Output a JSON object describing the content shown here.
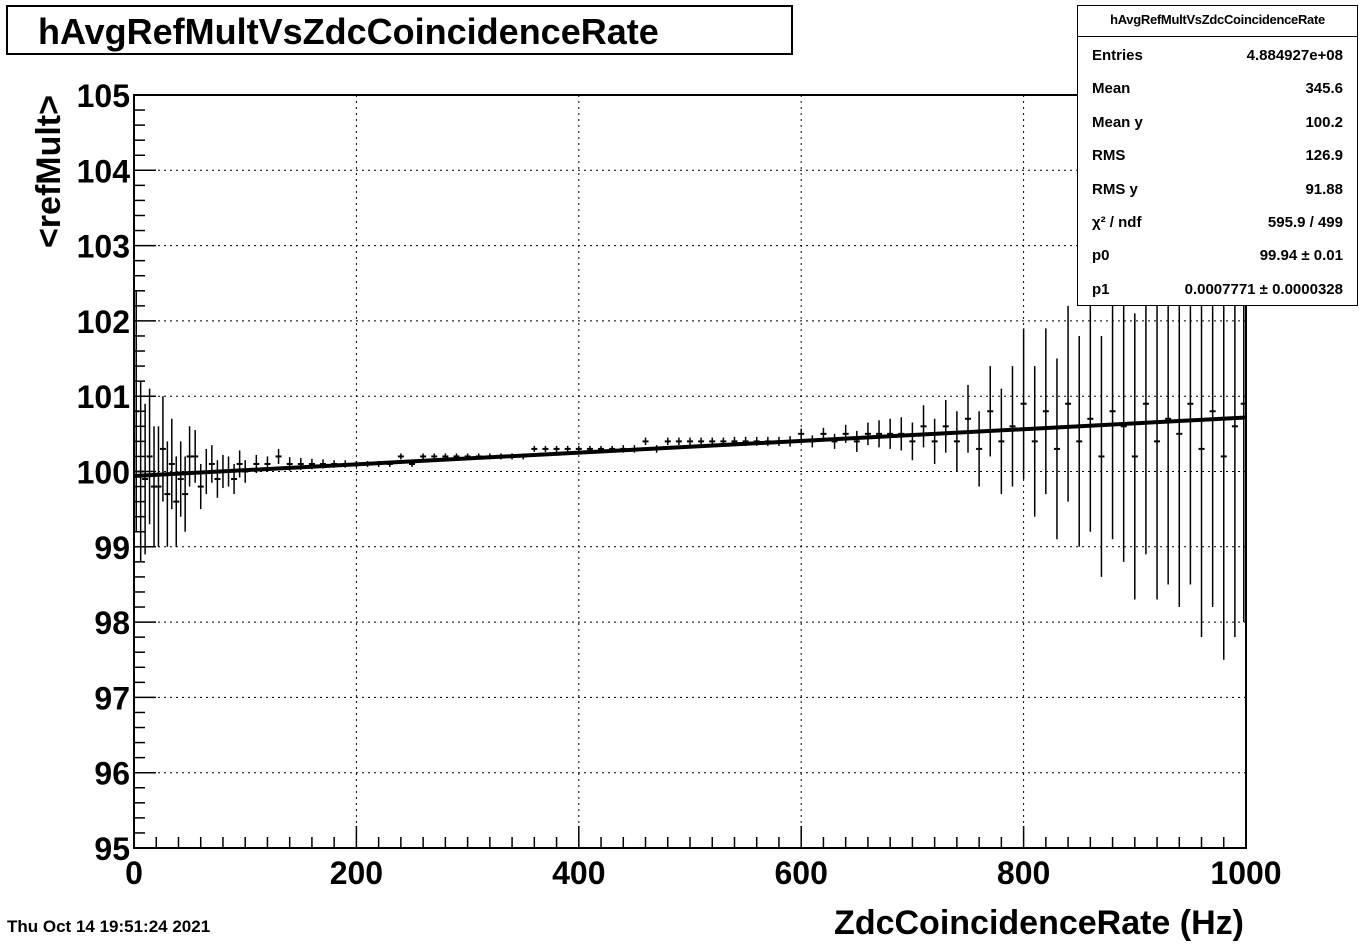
{
  "title": "hAvgRefMultVsZdcCoincidenceRate",
  "date_stamp": "Thu Oct 14 19:51:24 2021",
  "stats": {
    "name": "hAvgRefMultVsZdcCoincidenceRate",
    "rows": [
      {
        "key": "Entries",
        "value": "4.884927e+08"
      },
      {
        "key": "Mean",
        "value": "345.6"
      },
      {
        "key": "Mean y",
        "value": "100.2"
      },
      {
        "key": "RMS",
        "value": "126.9"
      },
      {
        "key": "RMS y",
        "value": "91.88"
      },
      {
        "key": "χ² / ndf",
        "value": "595.9 / 499"
      },
      {
        "key": "p0",
        "value": "99.94 ± 0.01"
      },
      {
        "key": "p1",
        "value": "0.0007771 ± 0.0000328"
      }
    ]
  },
  "chart_data": {
    "type": "scatter",
    "title": "hAvgRefMultVsZdcCoincidenceRate",
    "xlabel": "ZdcCoincidenceRate (Hz)",
    "ylabel": "<refMult>",
    "xlim": [
      0,
      1000
    ],
    "ylim": [
      95,
      105
    ],
    "xticks": [
      0,
      200,
      400,
      600,
      800,
      1000
    ],
    "yticks": [
      95,
      96,
      97,
      98,
      99,
      100,
      101,
      102,
      103,
      104,
      105
    ],
    "grid": true,
    "fit": {
      "type": "linear",
      "p0": 99.94,
      "p1": 0.0007771
    },
    "series": [
      {
        "values": [
          [
            2,
            100.8,
            1.6
          ],
          [
            6,
            100.0,
            1.2
          ],
          [
            10,
            99.9,
            1.0
          ],
          [
            14,
            100.2,
            0.9
          ],
          [
            18,
            99.8,
            0.8
          ],
          [
            22,
            99.8,
            0.8
          ],
          [
            26,
            100.3,
            0.7
          ],
          [
            30,
            99.7,
            0.7
          ],
          [
            34,
            100.1,
            0.6
          ],
          [
            38,
            99.6,
            0.6
          ],
          [
            42,
            99.9,
            0.5
          ],
          [
            46,
            99.7,
            0.5
          ],
          [
            50,
            100.2,
            0.4
          ],
          [
            55,
            100.2,
            0.35
          ],
          [
            60,
            99.8,
            0.3
          ],
          [
            65,
            100.0,
            0.3
          ],
          [
            70,
            100.1,
            0.25
          ],
          [
            75,
            99.9,
            0.25
          ],
          [
            80,
            100.0,
            0.22
          ],
          [
            85,
            100.0,
            0.2
          ],
          [
            90,
            99.9,
            0.2
          ],
          [
            95,
            100.1,
            0.18
          ],
          [
            100,
            100.0,
            0.15
          ],
          [
            110,
            100.1,
            0.12
          ],
          [
            120,
            100.1,
            0.1
          ],
          [
            130,
            100.2,
            0.1
          ],
          [
            140,
            100.1,
            0.09
          ],
          [
            150,
            100.1,
            0.08
          ],
          [
            160,
            100.1,
            0.07
          ],
          [
            170,
            100.1,
            0.06
          ],
          [
            180,
            100.1,
            0.05
          ],
          [
            190,
            100.1,
            0.05
          ],
          [
            200,
            100.1,
            0.04
          ],
          [
            210,
            100.1,
            0.04
          ],
          [
            220,
            100.1,
            0.04
          ],
          [
            230,
            100.1,
            0.04
          ],
          [
            240,
            100.2,
            0.04
          ],
          [
            250,
            100.1,
            0.04
          ],
          [
            260,
            100.2,
            0.04
          ],
          [
            270,
            100.2,
            0.04
          ],
          [
            280,
            100.2,
            0.04
          ],
          [
            290,
            100.2,
            0.04
          ],
          [
            300,
            100.2,
            0.04
          ],
          [
            310,
            100.2,
            0.04
          ],
          [
            320,
            100.2,
            0.04
          ],
          [
            330,
            100.2,
            0.04
          ],
          [
            340,
            100.2,
            0.04
          ],
          [
            350,
            100.2,
            0.04
          ],
          [
            360,
            100.3,
            0.04
          ],
          [
            370,
            100.3,
            0.04
          ],
          [
            380,
            100.3,
            0.04
          ],
          [
            390,
            100.3,
            0.04
          ],
          [
            400,
            100.3,
            0.04
          ],
          [
            410,
            100.3,
            0.04
          ],
          [
            420,
            100.3,
            0.04
          ],
          [
            430,
            100.3,
            0.04
          ],
          [
            440,
            100.3,
            0.05
          ],
          [
            450,
            100.3,
            0.05
          ],
          [
            460,
            100.4,
            0.05
          ],
          [
            470,
            100.3,
            0.05
          ],
          [
            480,
            100.4,
            0.05
          ],
          [
            490,
            100.4,
            0.05
          ],
          [
            500,
            100.4,
            0.05
          ],
          [
            510,
            100.4,
            0.05
          ],
          [
            520,
            100.4,
            0.05
          ],
          [
            530,
            100.4,
            0.05
          ],
          [
            540,
            100.4,
            0.06
          ],
          [
            550,
            100.4,
            0.06
          ],
          [
            560,
            100.4,
            0.06
          ],
          [
            570,
            100.4,
            0.06
          ],
          [
            580,
            100.4,
            0.06
          ],
          [
            590,
            100.4,
            0.07
          ],
          [
            600,
            100.5,
            0.07
          ],
          [
            610,
            100.4,
            0.08
          ],
          [
            620,
            100.5,
            0.08
          ],
          [
            630,
            100.4,
            0.1
          ],
          [
            640,
            100.5,
            0.12
          ],
          [
            650,
            100.4,
            0.14
          ],
          [
            660,
            100.5,
            0.15
          ],
          [
            670,
            100.5,
            0.18
          ],
          [
            680,
            100.5,
            0.2
          ],
          [
            690,
            100.5,
            0.22
          ],
          [
            700,
            100.4,
            0.25
          ],
          [
            710,
            100.6,
            0.28
          ],
          [
            720,
            100.4,
            0.3
          ],
          [
            730,
            100.6,
            0.35
          ],
          [
            740,
            100.4,
            0.4
          ],
          [
            750,
            100.7,
            0.45
          ],
          [
            760,
            100.3,
            0.5
          ],
          [
            770,
            100.8,
            0.6
          ],
          [
            780,
            100.4,
            0.7
          ],
          [
            790,
            100.6,
            0.8
          ],
          [
            800,
            100.9,
            1.0
          ],
          [
            810,
            100.4,
            1.0
          ],
          [
            820,
            100.8,
            1.1
          ],
          [
            830,
            100.3,
            1.2
          ],
          [
            840,
            100.9,
            1.3
          ],
          [
            850,
            100.4,
            1.4
          ],
          [
            860,
            100.7,
            1.5
          ],
          [
            870,
            100.2,
            1.6
          ],
          [
            880,
            100.8,
            1.7
          ],
          [
            890,
            100.6,
            1.8
          ],
          [
            900,
            100.2,
            1.9
          ],
          [
            910,
            100.9,
            2.0
          ],
          [
            920,
            100.4,
            2.1
          ],
          [
            930,
            100.7,
            2.2
          ],
          [
            940,
            100.5,
            2.3
          ],
          [
            950,
            100.9,
            2.4
          ],
          [
            960,
            100.3,
            2.5
          ],
          [
            970,
            100.8,
            2.6
          ],
          [
            980,
            100.2,
            2.7
          ],
          [
            990,
            100.6,
            2.8
          ],
          [
            998,
            100.9,
            2.9
          ]
        ]
      }
    ]
  }
}
